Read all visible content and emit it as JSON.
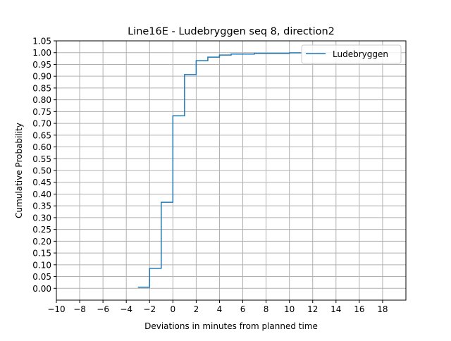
{
  "chart_data": {
    "type": "line",
    "step": "post",
    "title": "Line16E - Ludebryggen seq 8, direction2",
    "xlabel": "Deviations in minutes from planned time",
    "ylabel": "Cumulative Probability",
    "xlim": [
      -10,
      20
    ],
    "ylim": [
      -0.05,
      1.05
    ],
    "xticks": [
      -10,
      -8,
      -6,
      -4,
      -2,
      0,
      2,
      4,
      6,
      8,
      10,
      12,
      14,
      16,
      18
    ],
    "xtick_labels": [
      "−10",
      "−8",
      "−6",
      "−4",
      "−2",
      "0",
      "2",
      "4",
      "6",
      "8",
      "10",
      "12",
      "14",
      "16",
      "18"
    ],
    "yticks": [
      0,
      0.05,
      0.1,
      0.15,
      0.2,
      0.25,
      0.3,
      0.35,
      0.4,
      0.45,
      0.5,
      0.55,
      0.6,
      0.65,
      0.7,
      0.75,
      0.8,
      0.85,
      0.9,
      0.95,
      1.0,
      1.05
    ],
    "ytick_labels": [
      "0.00",
      "0.05",
      "0.10",
      "0.15",
      "0.20",
      "0.25",
      "0.30",
      "0.35",
      "0.40",
      "0.45",
      "0.50",
      "0.55",
      "0.60",
      "0.65",
      "0.70",
      "0.75",
      "0.80",
      "0.85",
      "0.90",
      "0.95",
      "1.00",
      "1.05"
    ],
    "grid": true,
    "legend_position": "top-right",
    "series": [
      {
        "name": "Ludebryggen",
        "color": "#1f77b4",
        "x": [
          -3,
          -2,
          -1,
          0,
          1,
          2,
          3,
          4,
          5,
          7,
          10,
          11
        ],
        "y": [
          0.005,
          0.085,
          0.365,
          0.732,
          0.907,
          0.966,
          0.981,
          0.99,
          0.994,
          0.997,
          0.999,
          1.0
        ]
      }
    ]
  }
}
